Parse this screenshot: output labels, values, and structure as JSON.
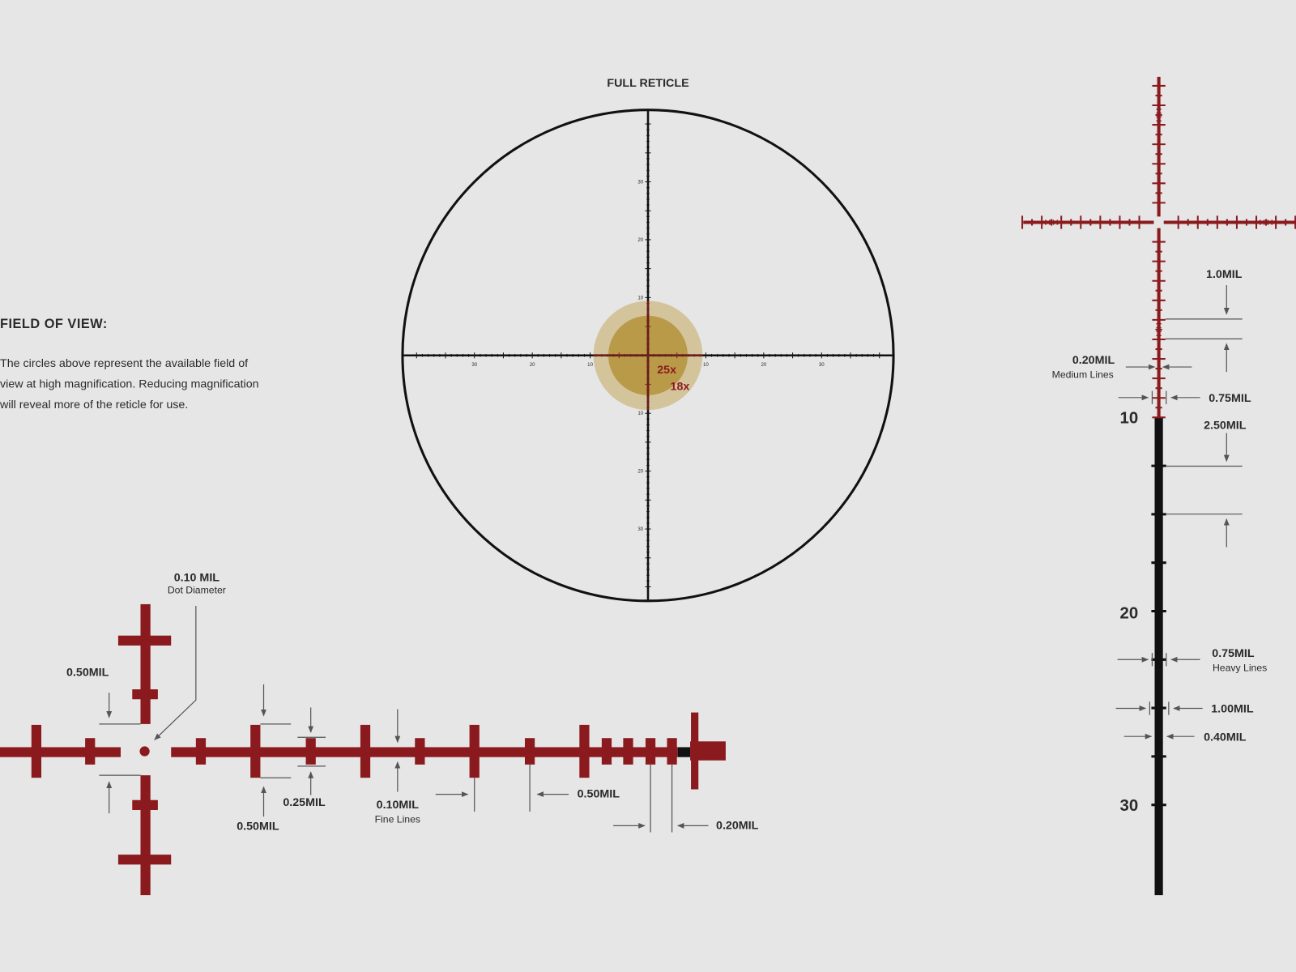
{
  "colors": {
    "background": "#e6e6e6",
    "reticle_red": "#8b1a1e",
    "reticle_black": "#111111",
    "fov_18x": "#d3c49c",
    "fov_25x": "#b99a48",
    "text": "#2a2a2a"
  },
  "main": {
    "title": "FULL RETICLE",
    "tick_labels": [
      "30",
      "20",
      "10",
      "10",
      "20",
      "30"
    ],
    "fov": [
      {
        "label": "25x"
      },
      {
        "label": "18x"
      }
    ]
  },
  "fov_note": {
    "heading": "FIELD OF VIEW:",
    "lines": [
      "The circles above represent the available field of",
      "view at high magnification. Reducing magnification",
      "will reveal more of the reticle for use."
    ]
  },
  "right_detail": {
    "numbers": [
      "10",
      "20",
      "30"
    ],
    "labels": {
      "one_mil": "1.0MIL",
      "medium": "0.20MIL",
      "medium_sub": "Medium Lines",
      "post_075a": "0.75MIL",
      "two_five": "2.50MIL",
      "heavy": "0.75MIL",
      "heavy_sub": "Heavy Lines",
      "one_00": "1.00MIL",
      "zero_40": "0.40MIL"
    }
  },
  "bottom_detail": {
    "labels": {
      "dot": "0.10 MIL",
      "dot_sub": "Dot Diameter",
      "left_050": "0.50MIL",
      "post_050": "0.50MIL",
      "post_025": "0.25MIL",
      "fine": "0.10MIL",
      "fine_sub": "Fine Lines",
      "spacing_050": "0.50MIL",
      "spacing_020": "0.20MIL"
    }
  }
}
